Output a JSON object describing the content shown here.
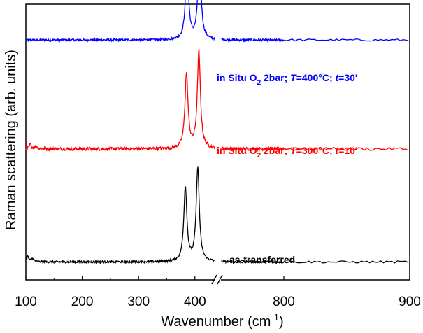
{
  "chart_data": {
    "type": "line",
    "xlabel": "Wavenumber (cm",
    "xlabel_sup": "-1",
    "xlabel_end": ")",
    "ylabel": "Raman scattering (arb. units)",
    "x_axis_segments": [
      {
        "xlim": [
          100,
          435
        ],
        "ticks": [
          100,
          200,
          300,
          400
        ]
      },
      {
        "xlim": [
          445,
          900
        ],
        "ticks": [
          800,
          900
        ]
      }
    ],
    "axis_break": true,
    "y_ticks_shown": false,
    "grid": false,
    "legend": "none",
    "series": [
      {
        "color": "#0000ff",
        "label_parts": [
          "in Situ O",
          "2",
          " 2bar; ",
          "T",
          "=400°C; ",
          "t",
          "=30'"
        ],
        "baseline": 0.87,
        "noise": 0.004,
        "peaks": [
          {
            "x": 386,
            "height": 0.27,
            "width": 3.3
          },
          {
            "x": 408,
            "height": 0.31,
            "width": 3.3
          }
        ],
        "edge_feature": []
      },
      {
        "color": "#ff0000",
        "label_parts": [
          "in Situ O",
          "2",
          " 2bar; ",
          "T",
          "=300°C; ",
          "t",
          "=10'"
        ],
        "baseline": 0.475,
        "noise": 0.006,
        "peaks": [
          {
            "x": 385,
            "height": 0.27,
            "width": 3.3
          },
          {
            "x": 407,
            "height": 0.35,
            "width": 3.3
          }
        ],
        "edge_feature": [
          {
            "x": 108,
            "height": 0.015
          },
          {
            "x": 118,
            "height": 0.01
          }
        ]
      },
      {
        "color": "#000000",
        "label_parts": [
          "as-transferred"
        ],
        "baseline": 0.065,
        "noise": 0.004,
        "peaks": [
          {
            "x": 383,
            "height": 0.27,
            "width": 3.3
          },
          {
            "x": 405,
            "height": 0.34,
            "width": 3.3
          }
        ],
        "edge_feature": [
          {
            "x": 103,
            "height": 0.02
          },
          {
            "x": 112,
            "height": 0.012
          }
        ]
      }
    ]
  }
}
